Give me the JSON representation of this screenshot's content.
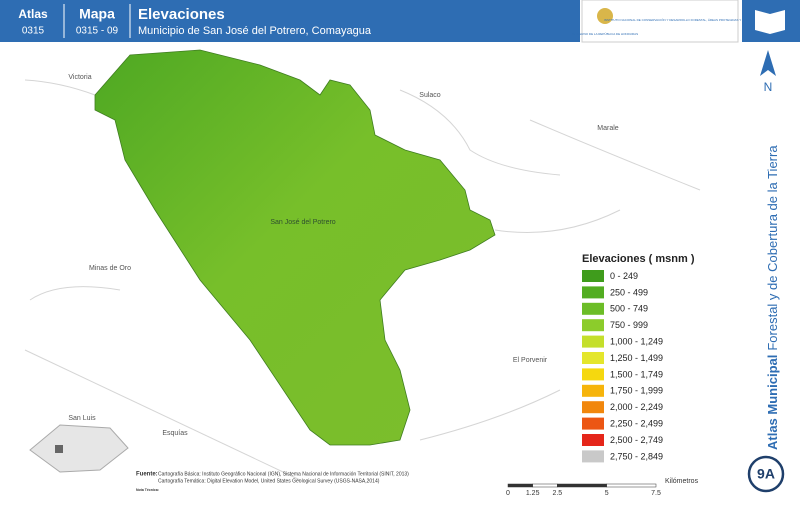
{
  "header": {
    "atlas_label": "Atlas",
    "atlas_code": "0315",
    "map_label": "Mapa",
    "map_code": "0315 - 09",
    "title": "Elevaciones",
    "subtitle": "Municipio de San José del Potrero, Comayagua",
    "logo_left": "GOBIERNO DE LA REPÚBLICA DE HONDURAS",
    "logo_right": "INSTITUTO NACIONAL DE CONSERVACIÓN Y DESARROLLO FORESTAL, ÁREAS PROTEGIDAS Y VIDA SILVESTRE"
  },
  "side": {
    "title_bold": "Atlas Municipal",
    "title_rest": "Forestal y de Cobertura de la Tierra",
    "north": "N",
    "page": "9A"
  },
  "places": [
    "Victoria",
    "Sulaco",
    "Marale",
    "San José del Potrero",
    "Minas de Oro",
    "El Porvenir",
    "San Luis",
    "Esquías"
  ],
  "legend": {
    "title": "Elevaciones ( msnm )",
    "items": [
      {
        "label": "0 - 249",
        "color": "#3f9c1c"
      },
      {
        "label": "250 - 499",
        "color": "#52ad21"
      },
      {
        "label": "500 - 749",
        "color": "#6cbd27"
      },
      {
        "label": "750 - 999",
        "color": "#8ccc2b"
      },
      {
        "label": "1,000 - 1,249",
        "color": "#c4df2b"
      },
      {
        "label": "1,250 - 1,499",
        "color": "#e4e62c"
      },
      {
        "label": "1,500 - 1,749",
        "color": "#f5d80f"
      },
      {
        "label": "1,750 - 1,999",
        "color": "#f6b40b"
      },
      {
        "label": "2,000 - 2,249",
        "color": "#f1870d"
      },
      {
        "label": "2,250 - 2,499",
        "color": "#ec5613"
      },
      {
        "label": "2,500 - 2,749",
        "color": "#e5261a"
      },
      {
        "label": "2,750 - 2,849",
        "color": "#c9c9c9"
      }
    ]
  },
  "footer": {
    "source_label": "Fuente:",
    "sources": [
      "Cartografía Básica: Instituto Geográfico Nacional (IGN), Sistema Nacional de Información Territorial (SINIT, 2013)",
      "Cartografía Temática: Digital Elevation Model, United States Geological Survey (USGS-NASA,2014)"
    ],
    "note_label": "Nota Técnica:"
  },
  "scale": {
    "ticks": [
      0,
      1.25,
      2.5,
      5,
      7.5
    ],
    "unit": "Kilómetros"
  }
}
